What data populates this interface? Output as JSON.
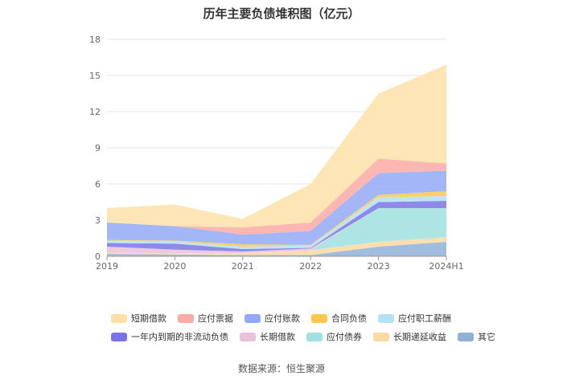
{
  "chart_data": {
    "type": "area",
    "stacked": true,
    "title": "历年主要负债堆积图（亿元）",
    "categories": [
      "2019",
      "2020",
      "2021",
      "2022",
      "2023",
      "2024H1"
    ],
    "ylim": [
      0,
      18
    ],
    "yticks": [
      "0",
      "3",
      "6",
      "9",
      "12",
      "15",
      "18"
    ],
    "grid": true,
    "legend_position": "bottom",
    "series": [
      {
        "name": "其它",
        "color": "#8fb0d9",
        "values": [
          0.2,
          0.15,
          0.1,
          0.1,
          0.8,
          1.2
        ]
      },
      {
        "name": "长期递延收益",
        "color": "#fbd9a0",
        "values": [
          0.1,
          0.1,
          0.15,
          0.4,
          0.4,
          0.4
        ]
      },
      {
        "name": "应付债券",
        "color": "#9fe0e0",
        "values": [
          0,
          0,
          0,
          0,
          2.8,
          2.4
        ]
      },
      {
        "name": "长期借款",
        "color": "#ebc0dc",
        "values": [
          0.5,
          0.3,
          0.15,
          0.15,
          0,
          0
        ]
      },
      {
        "name": "一年内到期的非流动负债",
        "color": "#7b74e8",
        "values": [
          0.3,
          0.5,
          0.2,
          0.05,
          0.5,
          0.6
        ]
      },
      {
        "name": "应付职工薪酬",
        "color": "#b2e1f8",
        "values": [
          0.2,
          0.2,
          0.2,
          0.2,
          0.4,
          0.4
        ]
      },
      {
        "name": "合同负债",
        "color": "#fec84a",
        "values": [
          0.05,
          0.05,
          0.2,
          0.05,
          0.2,
          0.4
        ]
      },
      {
        "name": "应付账款",
        "color": "#93a9f7",
        "values": [
          1.45,
          1.2,
          0.8,
          1.15,
          1.8,
          1.7
        ]
      },
      {
        "name": "应付票据",
        "color": "#fbaaa4",
        "values": [
          0,
          0,
          0.6,
          0.7,
          1.2,
          0.6
        ]
      },
      {
        "name": "短期借款",
        "color": "#fde0a8",
        "values": [
          1.2,
          1.8,
          0.7,
          3.2,
          5.4,
          8.2
        ]
      }
    ]
  },
  "legend": [
    {
      "label": "短期借款",
      "color": "#fde0a8"
    },
    {
      "label": "应付票据",
      "color": "#fbaaa4"
    },
    {
      "label": "应付账款",
      "color": "#93a9f7"
    },
    {
      "label": "合同负债",
      "color": "#fec84a"
    },
    {
      "label": "应付职工薪酬",
      "color": "#b2e1f8"
    },
    {
      "label": "一年内到期的非流动负债",
      "color": "#7b74e8"
    },
    {
      "label": "长期借款",
      "color": "#ebc0dc"
    },
    {
      "label": "应付债券",
      "color": "#9fe0e0"
    },
    {
      "label": "长期递延收益",
      "color": "#fbd9a0"
    },
    {
      "label": "其它",
      "color": "#8fb0d9"
    }
  ],
  "source": "数据来源：恒生聚源"
}
